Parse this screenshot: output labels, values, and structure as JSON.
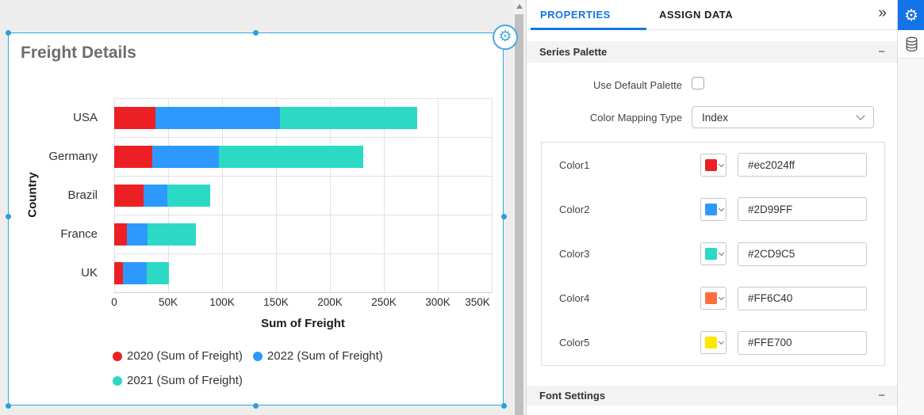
{
  "colors": {
    "accent_blue": "#1473e6",
    "selection_blue": "#29abe2"
  },
  "icons": {
    "settings_glyph": "⚙",
    "collapse_glyph": "»",
    "minus_glyph": "−"
  },
  "chart_data": {
    "type": "bar",
    "orientation": "horizontal",
    "stacked": true,
    "title": "Freight Details",
    "categories": [
      "USA",
      "Germany",
      "Brazil",
      "France",
      "UK"
    ],
    "series": [
      {
        "name": "2020 (Sum of Freight)",
        "color": "#EC2024",
        "values": [
          38000,
          35000,
          27000,
          12000,
          8000
        ]
      },
      {
        "name": "2022 (Sum of Freight)",
        "color": "#2D99FF",
        "values": [
          116000,
          62000,
          22000,
          19000,
          22000
        ]
      },
      {
        "name": "2021 (Sum of Freight)",
        "color": "#2CD9C5",
        "values": [
          127000,
          134000,
          40000,
          45000,
          21000
        ]
      }
    ],
    "xlabel": "Sum of Freight",
    "ylabel": "Country",
    "xlim": [
      0,
      350000
    ],
    "xticks": [
      0,
      50000,
      100000,
      150000,
      200000,
      250000,
      300000,
      350000
    ],
    "xtick_labels": [
      "0",
      "50K",
      "100K",
      "150K",
      "200K",
      "250K",
      "300K",
      "350K"
    ],
    "grid": true,
    "legend_position": "bottom"
  },
  "panel": {
    "tabs": [
      {
        "label": "PROPERTIES",
        "active": true
      },
      {
        "label": "ASSIGN DATA",
        "active": false
      }
    ],
    "sections": {
      "series_palette": {
        "title": "Series Palette"
      },
      "font_settings": {
        "title": "Font Settings"
      }
    },
    "use_default_palette": {
      "label": "Use Default Palette",
      "checked": false
    },
    "color_mapping": {
      "label": "Color Mapping Type",
      "value": "Index"
    },
    "colors": [
      {
        "label": "Color1",
        "swatch": "#EC2024",
        "value": "#ec2024ff"
      },
      {
        "label": "Color2",
        "swatch": "#2D99FF",
        "value": "#2D99FF"
      },
      {
        "label": "Color3",
        "swatch": "#2CD9C5",
        "value": "#2CD9C5"
      },
      {
        "label": "Color4",
        "swatch": "#FF6C40",
        "value": "#FF6C40"
      },
      {
        "label": "Color5",
        "swatch": "#FFE700",
        "value": "#FFE700"
      }
    ]
  }
}
